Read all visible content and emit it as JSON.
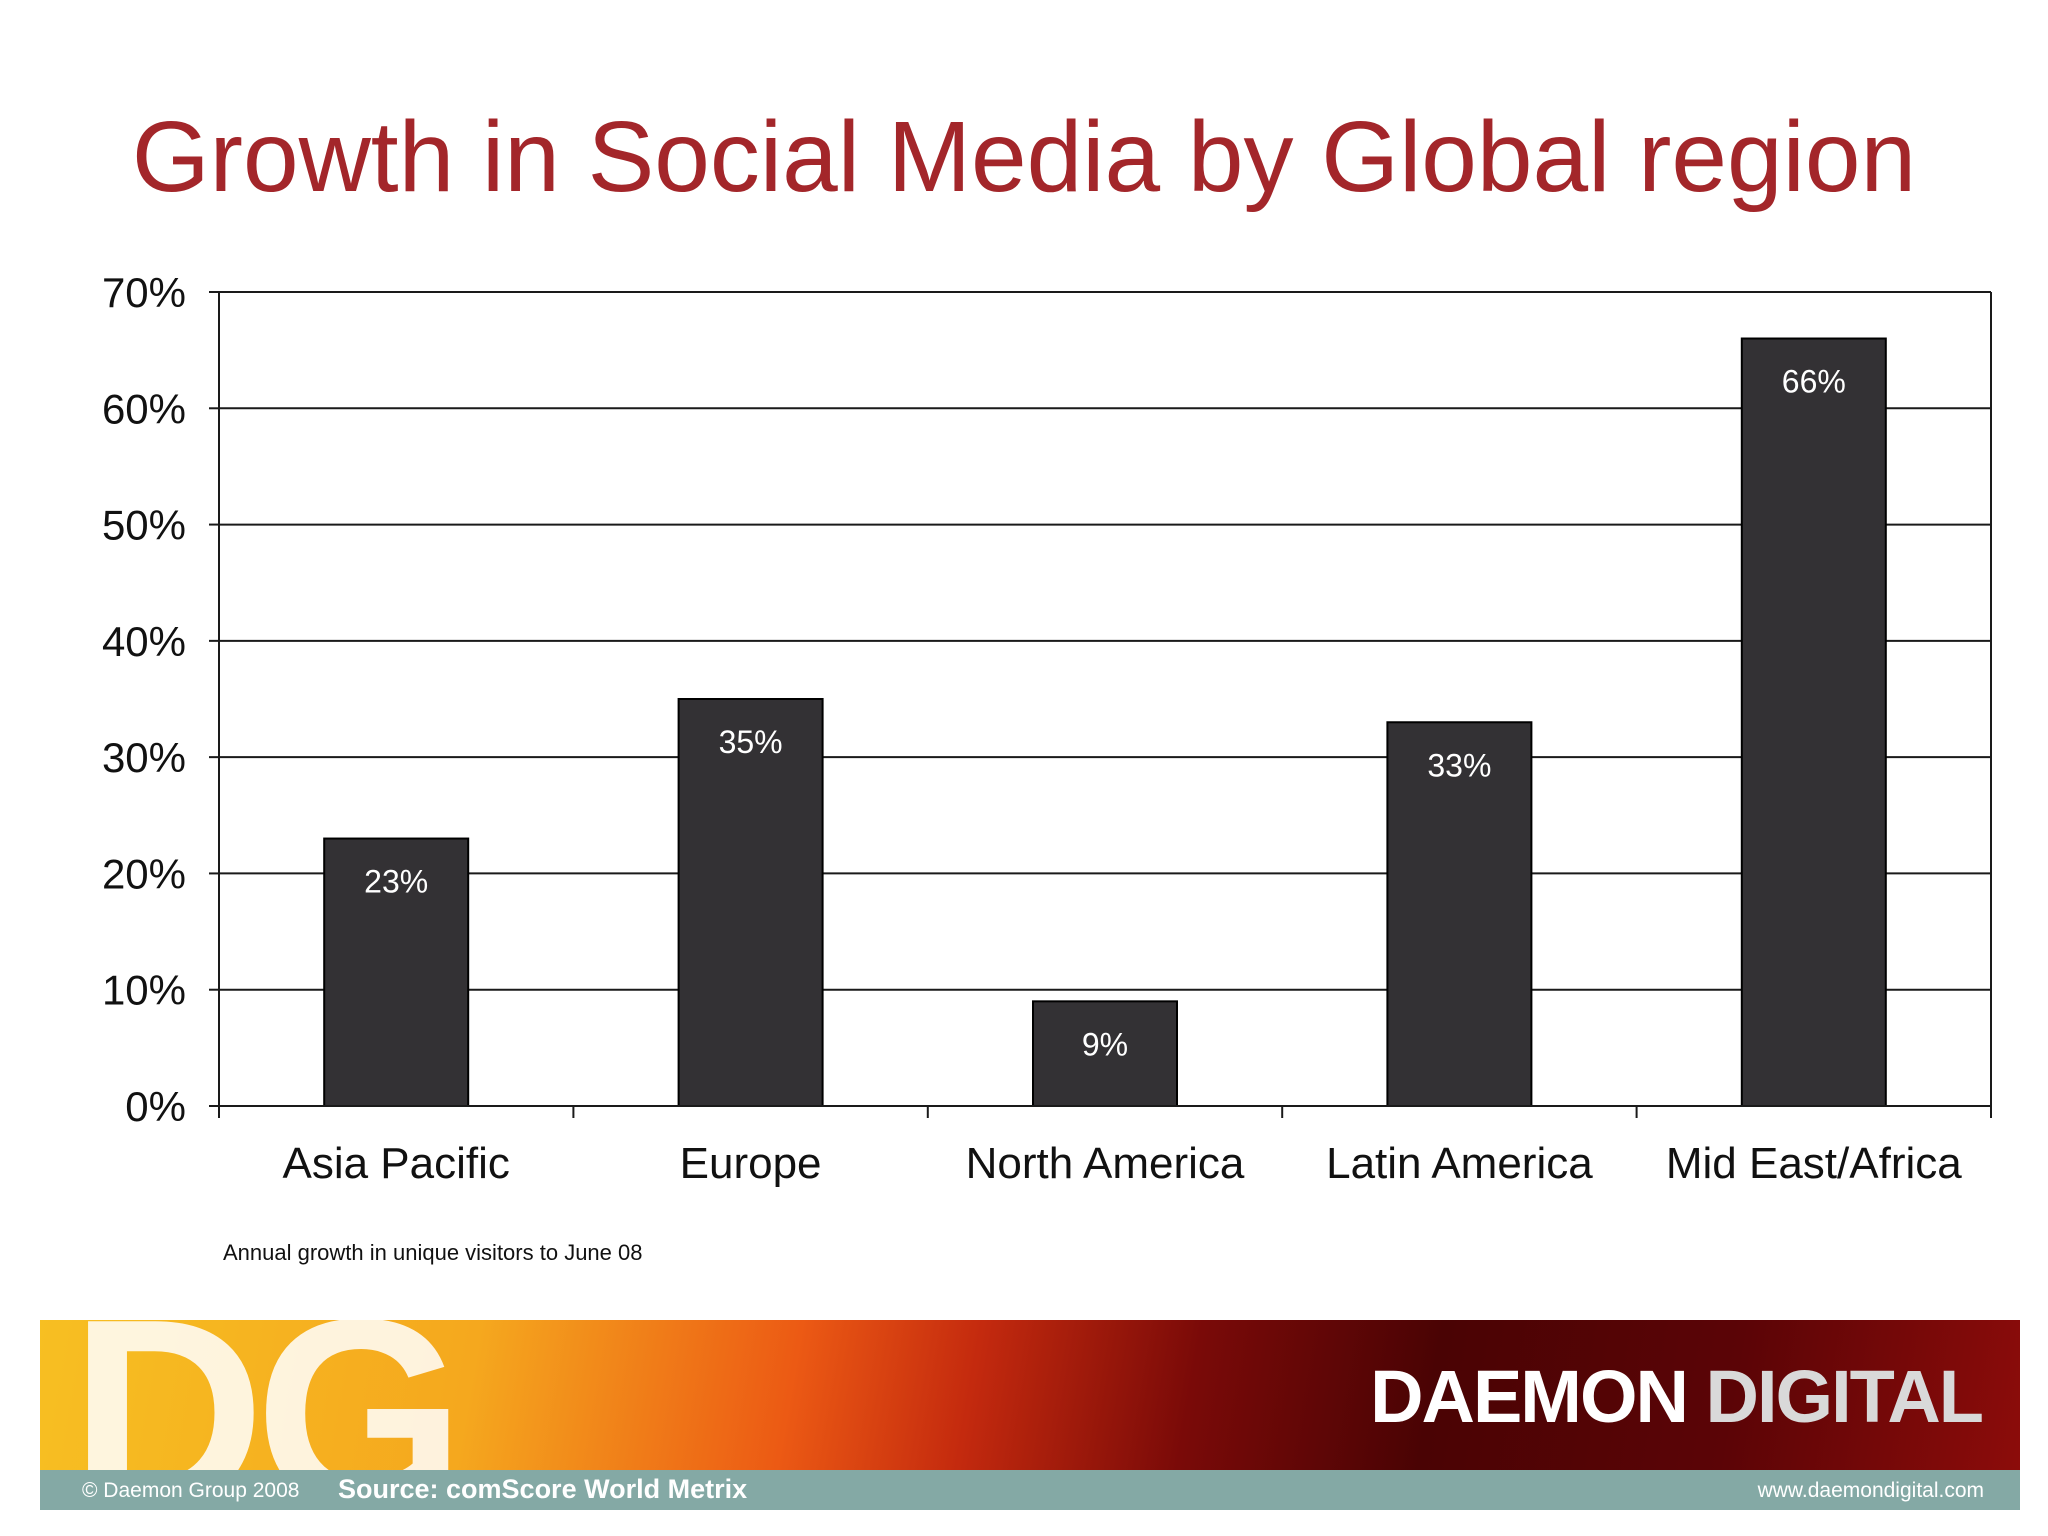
{
  "title": "Growth in Social Media by Global region",
  "note": "Annual growth in unique visitors to June 08",
  "footer": {
    "logo_letters": "DG",
    "brand_primary": "DAEMON",
    "brand_secondary": "DIGITAL",
    "copyright": "© Daemon Group 2008",
    "source": "Source: comScore World Metrix",
    "website": "www.daemondigital.com"
  },
  "colors": {
    "title": "#a3262a",
    "bar": "#333134",
    "footer_bar": "#84a9a5"
  },
  "chart_data": {
    "type": "bar",
    "title": "Growth in Social Media by Global region",
    "xlabel": "",
    "ylabel": "",
    "categories": [
      "Asia Pacific",
      "Europe",
      "North America",
      "Latin America",
      "Mid East/Africa"
    ],
    "values": [
      23,
      35,
      9,
      33,
      66
    ],
    "data_labels": [
      "23%",
      "35%",
      "9%",
      "33%",
      "66%"
    ],
    "ylim": [
      0,
      70
    ],
    "yticks": [
      0,
      10,
      20,
      30,
      40,
      50,
      60,
      70
    ],
    "ytick_labels": [
      "0%",
      "10%",
      "20%",
      "30%",
      "40%",
      "50%",
      "60%",
      "70%"
    ],
    "grid": true,
    "legend": "none"
  }
}
